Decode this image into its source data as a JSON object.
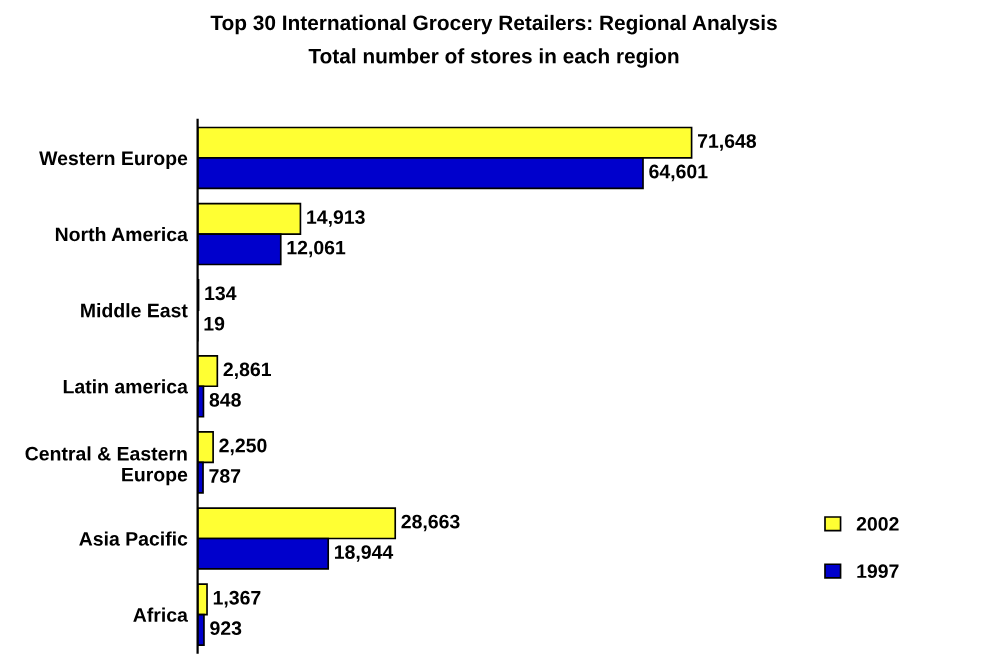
{
  "chart_data": {
    "type": "bar",
    "orientation": "horizontal",
    "title": "Top 30 International Grocery Retailers: Regional Analysis",
    "subtitle": "Total number of stores in each region",
    "categories": [
      "Western Europe",
      "North America",
      "Middle East",
      "Latin america",
      "Central & Eastern\nEurope",
      "Asia Pacific",
      "Africa"
    ],
    "series": [
      {
        "name": "2002",
        "color": "#ffff33",
        "values": [
          71648,
          14913,
          134,
          2861,
          2250,
          28663,
          1367
        ],
        "value_labels": [
          "71,648",
          "14,913",
          "134",
          "2,861",
          "2,250",
          "28,663",
          "1,367"
        ]
      },
      {
        "name": "1997",
        "color": "#0000cc",
        "values": [
          64601,
          12061,
          19,
          848,
          787,
          18944,
          923
        ],
        "value_labels": [
          "64,601",
          "12,061",
          "19",
          "848",
          "787",
          "18,944",
          "923"
        ]
      }
    ],
    "legend": "bottom right",
    "grid": false
  }
}
